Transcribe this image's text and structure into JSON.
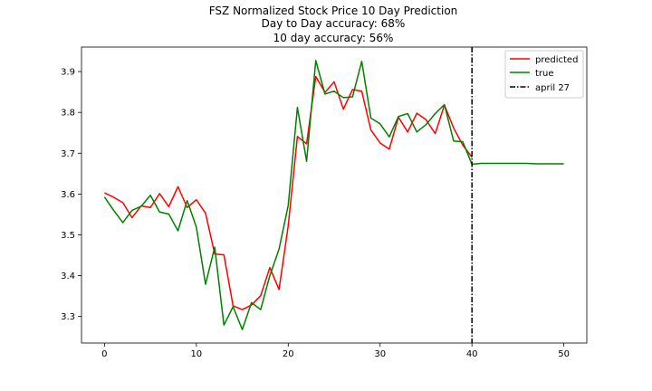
{
  "chart_data": {
    "type": "line",
    "title_lines": [
      "FSZ Normalized Stock Price 10 Day Prediction",
      "Day to Day accuracy: 68%",
      "10 day accuracy: 56%"
    ],
    "xlabel": "",
    "ylabel": "",
    "xlim": [
      -2.5,
      52.5
    ],
    "ylim": [
      3.235,
      3.96
    ],
    "x_ticks": [
      0,
      10,
      20,
      30,
      40,
      50
    ],
    "y_ticks": [
      3.3,
      3.4,
      3.5,
      3.6,
      3.7,
      3.8,
      3.9
    ],
    "grid": false,
    "legend_position": "top-right",
    "series": [
      {
        "name": "predicted",
        "color": "#ff0000",
        "x": [
          0,
          1,
          2,
          3,
          4,
          5,
          6,
          7,
          8,
          9,
          10,
          11,
          12,
          13,
          14,
          15,
          16,
          17,
          18,
          19,
          20,
          21,
          22,
          23,
          24,
          25,
          26,
          27,
          28,
          29,
          30,
          31,
          32,
          33,
          34,
          35,
          36,
          37,
          38,
          39,
          40
        ],
        "y": [
          3.603,
          3.592,
          3.579,
          3.542,
          3.571,
          3.567,
          3.601,
          3.569,
          3.618,
          3.567,
          3.586,
          3.553,
          3.453,
          3.451,
          3.326,
          3.317,
          3.328,
          3.351,
          3.42,
          3.366,
          3.522,
          3.741,
          3.723,
          3.888,
          3.849,
          3.875,
          3.808,
          3.856,
          3.852,
          3.757,
          3.725,
          3.71,
          3.788,
          3.752,
          3.798,
          3.782,
          3.748,
          3.818,
          3.762,
          3.72,
          3.69
        ]
      },
      {
        "name": "true",
        "color": "#008000",
        "x": [
          0,
          1,
          2,
          3,
          4,
          5,
          6,
          7,
          8,
          9,
          10,
          11,
          12,
          13,
          14,
          15,
          16,
          17,
          18,
          19,
          20,
          21,
          22,
          23,
          24,
          25,
          26,
          27,
          28,
          29,
          30,
          31,
          32,
          33,
          34,
          35,
          36,
          37,
          38,
          39,
          40,
          41,
          42,
          43,
          44,
          45,
          46,
          47,
          48,
          49,
          50
        ],
        "y": [
          3.593,
          3.56,
          3.53,
          3.56,
          3.57,
          3.597,
          3.556,
          3.551,
          3.51,
          3.584,
          3.519,
          3.379,
          3.47,
          3.279,
          3.324,
          3.268,
          3.334,
          3.317,
          3.4,
          3.465,
          3.572,
          3.812,
          3.68,
          3.927,
          3.845,
          3.852,
          3.836,
          3.838,
          3.925,
          3.786,
          3.772,
          3.74,
          3.79,
          3.797,
          3.752,
          3.77,
          3.797,
          3.819,
          3.73,
          3.728,
          3.673,
          3.675,
          3.675,
          3.675,
          3.675,
          3.675,
          3.675,
          3.674,
          3.674,
          3.674,
          3.674
        ]
      }
    ],
    "vertical_lines": [
      {
        "name": "april 27",
        "x": 40,
        "color": "#000000",
        "style": "dash-dot"
      }
    ]
  }
}
